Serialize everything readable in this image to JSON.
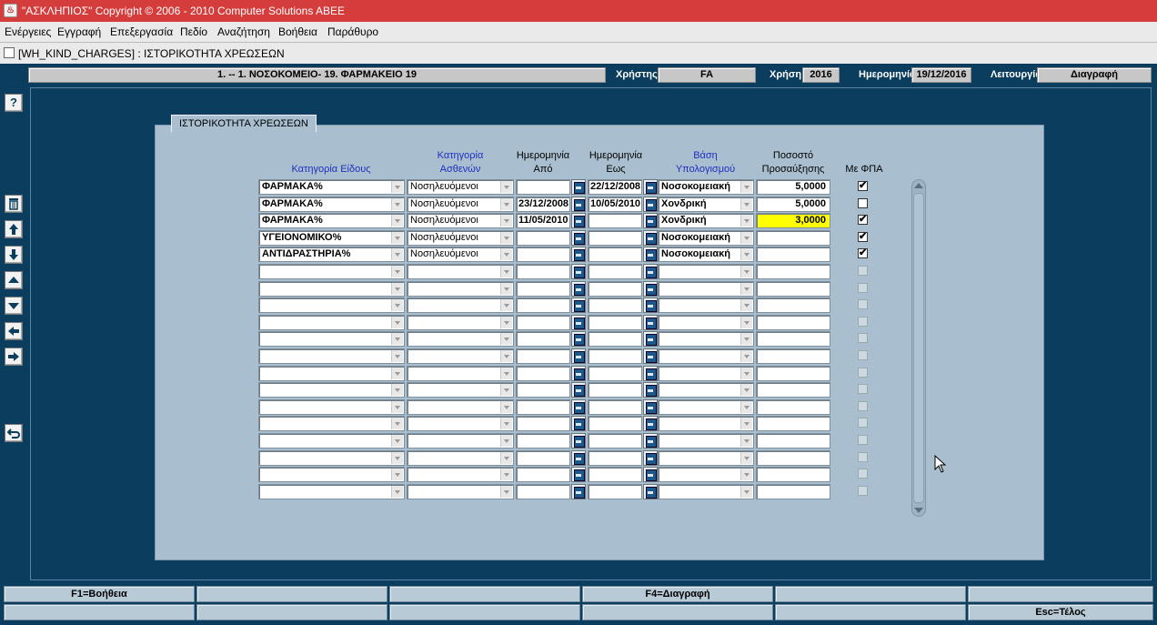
{
  "window": {
    "title": "\"ΑΣΚΛΗΠΙΟΣ\" Copyright © 2006 - 2010 Computer Solutions ABEE",
    "form_title": "[WH_KIND_CHARGES]  :  ΙΣΤΟΡΙΚΟΤΗΤΑ ΧΡΕΩΣΕΩΝ"
  },
  "menu": [
    "Ενέργειες",
    "Εγγραφή",
    "Επεξεργασία",
    "Πεδίο",
    "Αναζήτηση",
    "Βοήθεια",
    "Παράθυρο"
  ],
  "info": {
    "location": "1. -- 1. ΝΟΣΟΚΟΜΕΙΟ- 19. ΦΑΡΜΑΚΕΙΟ 19",
    "user_label": "Χρήστης",
    "user": "FA",
    "year_label": "Χρήση",
    "year": "2016",
    "date_label": "Ημερομηνία",
    "date": "19/12/2016",
    "mode_label": "Λειτουργία",
    "mode": "Διαγραφή"
  },
  "toolbar": {
    "help": "?",
    "delete_icon": "trash-icon",
    "icons": [
      "arrow-up-icon",
      "arrow-down-icon",
      "triangle-up-icon",
      "triangle-down-icon",
      "arrow-left-icon",
      "arrow-right-icon",
      "undo-icon"
    ]
  },
  "section": {
    "title": "ΙΣΤΟΡΙΚΟΤΗΤΑ ΧΡΕΩΣΕΩΝ"
  },
  "columns": {
    "category": "Κατηγορία Είδους",
    "patient_line1": "Κατηγορία",
    "patient_line2": "Ασθενών",
    "date_from_line1": "Ημερομηνία",
    "date_from_line2": "Από",
    "date_to_line1": "Ημερομηνία",
    "date_to_line2": "Εως",
    "basis_line1": "Βάση",
    "basis_line2": "Υπολογισμού",
    "pct_line1": "Ποσοστό",
    "pct_line2": "Προσαύξησης",
    "vat": "Με ΦΠΑ"
  },
  "rows": [
    {
      "category": "ΦΑΡΜΑΚΑ%",
      "patient": "Νοσηλευόμενοι",
      "date_from": "",
      "date_to": "22/12/2008",
      "basis": "Νοσοκομειακή",
      "pct": "5,0000",
      "vat": "✔",
      "vat_checked": true,
      "highlight": false
    },
    {
      "category": "ΦΑΡΜΑΚΑ%",
      "patient": "Νοσηλευόμενοι",
      "date_from": "23/12/2008",
      "date_to": "10/05/2010",
      "basis": "Χονδρική",
      "pct": "5,0000",
      "vat": "",
      "vat_checked": false,
      "highlight": false
    },
    {
      "category": "ΦΑΡΜΑΚΑ%",
      "patient": "Νοσηλευόμενοι",
      "date_from": "11/05/2010",
      "date_to": "",
      "basis": "Χονδρική",
      "pct": "3,0000",
      "vat": "✔",
      "vat_checked": true,
      "highlight": true
    },
    {
      "category": "ΥΓΕΙΟΝΟΜΙΚΟ%",
      "patient": "Νοσηλευόμενοι",
      "date_from": "",
      "date_to": "",
      "basis": "Νοσοκομειακή",
      "pct": "",
      "vat": "✔",
      "vat_checked": true,
      "highlight": false
    },
    {
      "category": "ΑΝΤΙΔΡΑΣΤΗΡΙΑ%",
      "patient": "Νοσηλευόμενοι",
      "date_from": "",
      "date_to": "",
      "basis": "Νοσοκομειακή",
      "pct": "",
      "vat": "✔",
      "vat_checked": true,
      "highlight": false
    }
  ],
  "empty_rows": 14,
  "function_keys": {
    "f1": "F1=Βοήθεια",
    "f4": "F4=Διαγραφή",
    "esc": "Esc=Τέλος"
  }
}
